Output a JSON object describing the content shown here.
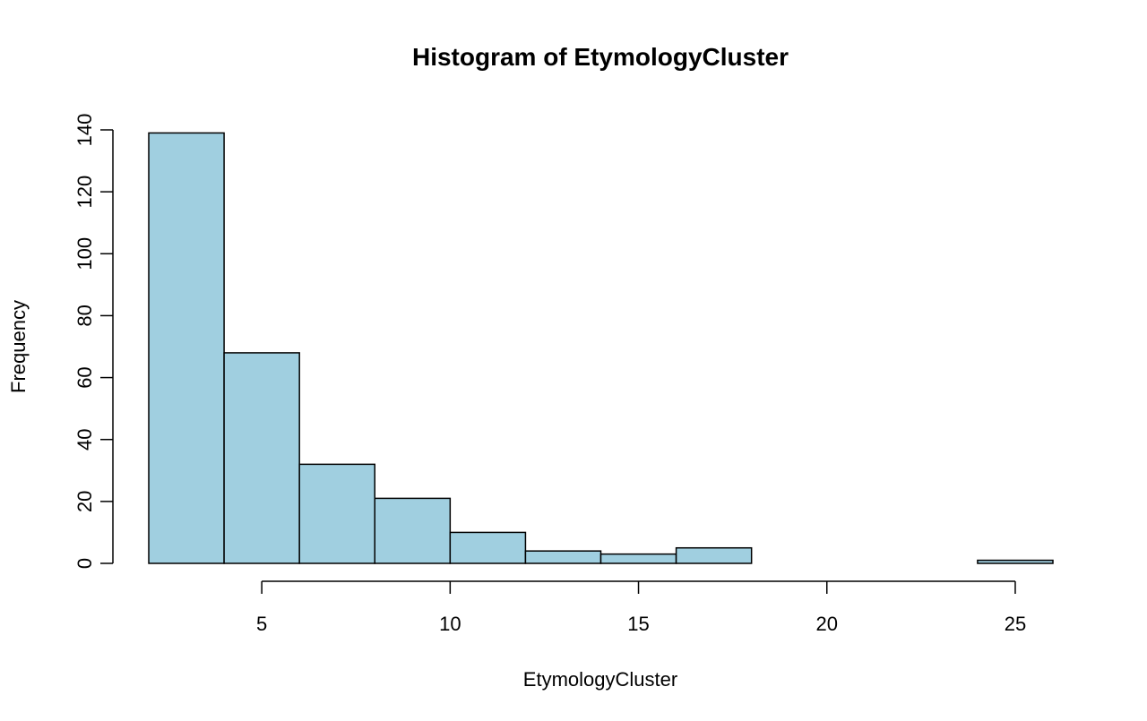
{
  "chart_data": {
    "type": "bar",
    "title": "Histogram of EtymologyCluster",
    "xlabel": "EtymologyCluster",
    "ylabel": "Frequency",
    "bin_edges": [
      2,
      4,
      6,
      8,
      10,
      12,
      14,
      16,
      18,
      20,
      22,
      24,
      26
    ],
    "values": [
      139,
      68,
      32,
      21,
      10,
      4,
      3,
      5,
      0,
      0,
      0,
      1
    ],
    "xlim": [
      2,
      26
    ],
    "ylim": [
      0,
      140
    ],
    "x_ticks": [
      5,
      10,
      15,
      20,
      25
    ],
    "y_ticks": [
      0,
      20,
      40,
      60,
      80,
      100,
      120,
      140
    ],
    "bar_color": "#a0cfe0",
    "grid": false,
    "legend": "none"
  }
}
